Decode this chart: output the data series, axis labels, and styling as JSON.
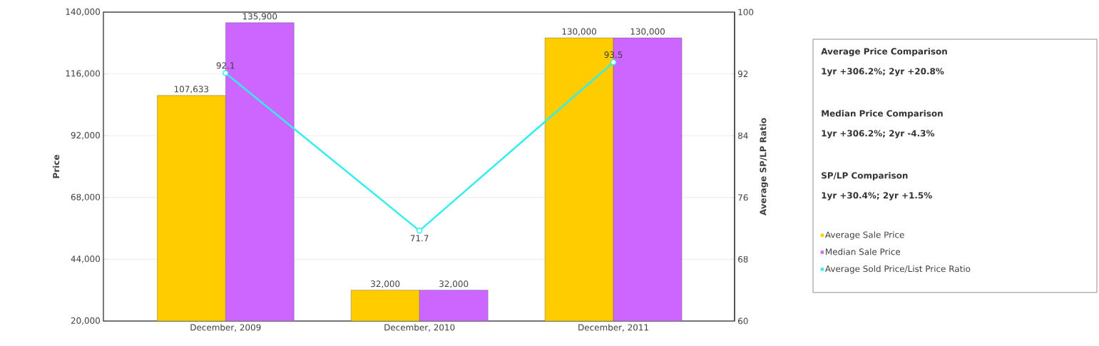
{
  "chart_data": {
    "type": "bar",
    "categories": [
      "December, 2009",
      "December, 2010",
      "December, 2011"
    ],
    "ylabel": "Price",
    "y2label": "Average SP/LP Ratio",
    "ylim": [
      20000,
      140000
    ],
    "yticks": [
      {
        "value": 20000,
        "label": "20,000"
      },
      {
        "value": 44000,
        "label": "44,000"
      },
      {
        "value": 68000,
        "label": "68,000"
      },
      {
        "value": 92000,
        "label": "92,000"
      },
      {
        "value": 116000,
        "label": "116,000"
      },
      {
        "value": 140000,
        "label": "140,000"
      }
    ],
    "y2lim": [
      60,
      100
    ],
    "y2ticks": [
      60,
      68,
      76,
      84,
      92,
      100
    ],
    "grid": "y",
    "legend": "right",
    "data_labels": true,
    "annotations": [
      "Average Price Comparison",
      "1yr +306.2%; 2yr +20.8%",
      "Median Price Comparison",
      "1yr +306.2%; 2yr -4.3%",
      "SP/LP Comparison",
      "1yr +30.4%; 2yr +1.5%"
    ],
    "series": [
      {
        "name": "Average Sale Price",
        "color": "#ffcc00",
        "values": [
          107633,
          32000,
          130000
        ],
        "value_labels": [
          "107,633",
          "32,000",
          "130,000"
        ]
      },
      {
        "name": "Median Sale Price",
        "color": "#cc66ff",
        "values": [
          135900,
          32000,
          130000
        ],
        "value_labels": [
          "135,900",
          "32,000",
          "130,000"
        ]
      },
      {
        "name": "Average Sold Price/List Price Ratio",
        "type": "line",
        "axis": "y2",
        "marker": "circle",
        "color": "#33eeee",
        "values": [
          92.1,
          71.7,
          93.5
        ]
      }
    ]
  }
}
